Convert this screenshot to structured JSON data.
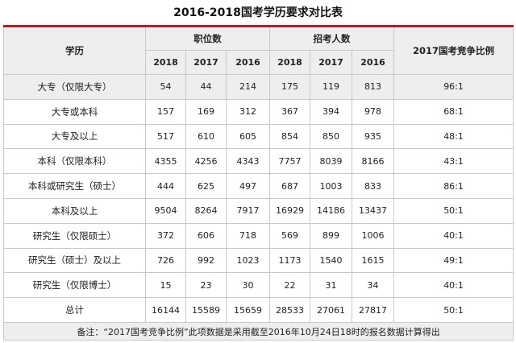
{
  "title": "2016-2018国考学历要求对比表",
  "headers": {
    "education": "学历",
    "positions": "职位数",
    "recruits": "招考人数",
    "ratio": "2017国考竞争比例",
    "years": [
      "2018",
      "2017",
      "2016"
    ]
  },
  "rows": [
    {
      "label": "大专（仅限大专）",
      "positions": [
        "54",
        "44",
        "214"
      ],
      "recruits": [
        "175",
        "119",
        "813"
      ],
      "ratio": "96:1"
    },
    {
      "label": "大专或本科",
      "positions": [
        "157",
        "169",
        "312"
      ],
      "recruits": [
        "367",
        "394",
        "978"
      ],
      "ratio": "68:1"
    },
    {
      "label": "大专及以上",
      "positions": [
        "517",
        "610",
        "605"
      ],
      "recruits": [
        "854",
        "850",
        "935"
      ],
      "ratio": "48:1"
    },
    {
      "label": "本科（仅限本科）",
      "positions": [
        "4355",
        "4256",
        "4343"
      ],
      "recruits": [
        "7757",
        "8039",
        "8166"
      ],
      "ratio": "43:1"
    },
    {
      "label": "本科或研究生（硕士）",
      "positions": [
        "444",
        "625",
        "497"
      ],
      "recruits": [
        "687",
        "1003",
        "833"
      ],
      "ratio": "86:1"
    },
    {
      "label": "本科及以上",
      "positions": [
        "9504",
        "8264",
        "7917"
      ],
      "recruits": [
        "16929",
        "14186",
        "13437"
      ],
      "ratio": "50:1"
    },
    {
      "label": "研究生（仅限硕士）",
      "positions": [
        "372",
        "606",
        "718"
      ],
      "recruits": [
        "569",
        "899",
        "1006"
      ],
      "ratio": "40:1"
    },
    {
      "label": "研究生（硕士）及以上",
      "positions": [
        "726",
        "992",
        "1023"
      ],
      "recruits": [
        "1173",
        "1540",
        "1615"
      ],
      "ratio": "49:1"
    },
    {
      "label": "研究生（仅限博士）",
      "positions": [
        "15",
        "23",
        "30"
      ],
      "recruits": [
        "22",
        "31",
        "34"
      ],
      "ratio": "40:1"
    },
    {
      "label": "总计",
      "positions": [
        "16144",
        "15589",
        "15659"
      ],
      "recruits": [
        "28533",
        "27061",
        "27817"
      ],
      "ratio": "50:1"
    }
  ],
  "note": "备注：“2017国考竞争比例”此项数据是采用截至2016年10月24日18时的报名数据计算得出"
}
